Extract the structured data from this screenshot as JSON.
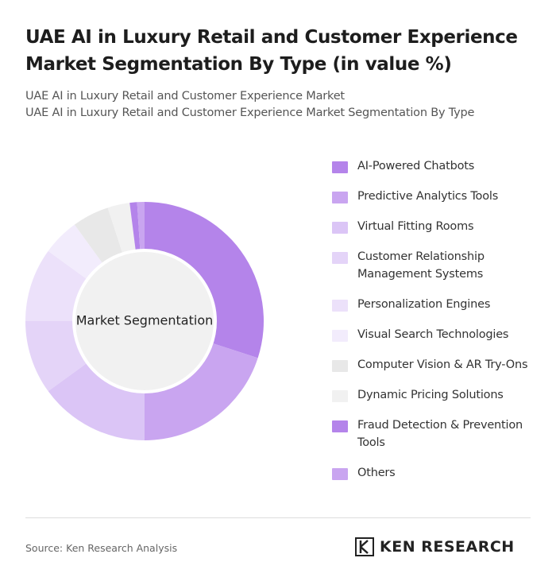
{
  "chart_data": {
    "type": "donut",
    "title": "UAE AI in Luxury Retail and Customer Experience Market Segmentation By Type (in value %)",
    "subtitle": [
      "UAE AI in Luxury Retail and Customer Experience Market",
      "UAE AI in Luxury Retail and Customer Experience Market Segmentation By Type"
    ],
    "center_label": "Market Segmentation",
    "categories": [
      "AI-Powered Chatbots",
      "Predictive Analytics Tools",
      "Virtual Fitting Rooms",
      "Customer Relationship Management Systems",
      "Personalization Engines",
      "Visual Search Technologies",
      "Computer Vision & AR Try-Ons",
      "Dynamic Pricing Solutions",
      "Fraud Detection & Prevention Tools",
      "Others"
    ],
    "values": [
      30,
      20,
      15,
      10,
      10,
      5,
      5,
      3,
      1,
      1
    ],
    "colors": [
      "#b484ea",
      "#c9a5f0",
      "#dbc5f6",
      "#e4d4f8",
      "#ece1fa",
      "#f2ecfc",
      "#e8e8e8",
      "#f1f1f1",
      "#b484ea",
      "#c9a5f0"
    ],
    "source": "Source: Ken Research Analysis",
    "brand": "KEN RESEARCH"
  }
}
